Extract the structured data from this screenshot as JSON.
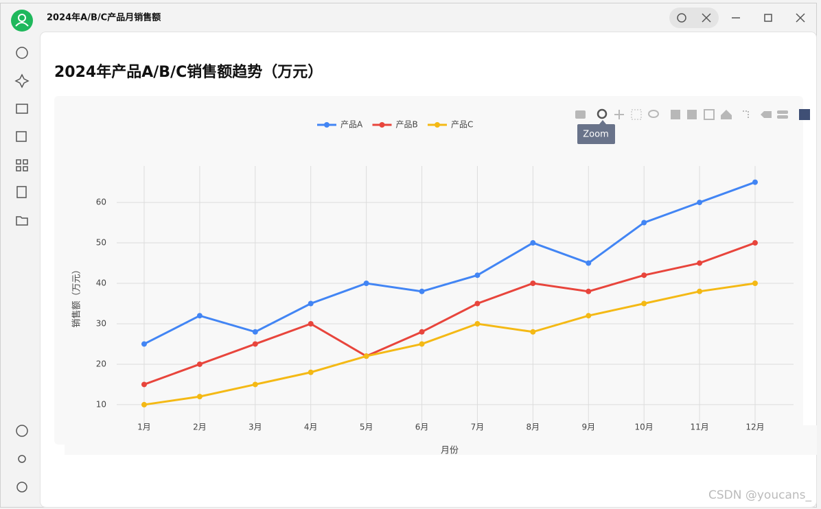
{
  "window": {
    "title": "2024年A/B/C产品月销售额"
  },
  "chart_data": {
    "type": "line",
    "title": "2024年产品A/B/C销售额趋势（万元）",
    "xlabel": "月份",
    "ylabel": "销售额（万元）",
    "categories": [
      "1月",
      "2月",
      "3月",
      "4月",
      "5月",
      "6月",
      "7月",
      "8月",
      "9月",
      "10月",
      "11月",
      "12月"
    ],
    "series": [
      {
        "name": "产品A",
        "color": "#4285f4",
        "values": [
          25,
          32,
          28,
          35,
          40,
          38,
          42,
          50,
          45,
          55,
          60,
          65
        ]
      },
      {
        "name": "产品B",
        "color": "#e8453c",
        "values": [
          15,
          20,
          25,
          30,
          22,
          28,
          35,
          40,
          38,
          42,
          45,
          50
        ]
      },
      {
        "name": "产品C",
        "color": "#f4b915",
        "values": [
          10,
          12,
          15,
          18,
          22,
          25,
          30,
          28,
          32,
          35,
          38,
          40
        ]
      }
    ],
    "ylim": [
      4.9,
      69
    ],
    "yticks": [
      10,
      20,
      30,
      40,
      50,
      60
    ],
    "grid": true,
    "legend": "top"
  },
  "tooltip": "Zoom",
  "watermark": "CSDN @youcans_"
}
